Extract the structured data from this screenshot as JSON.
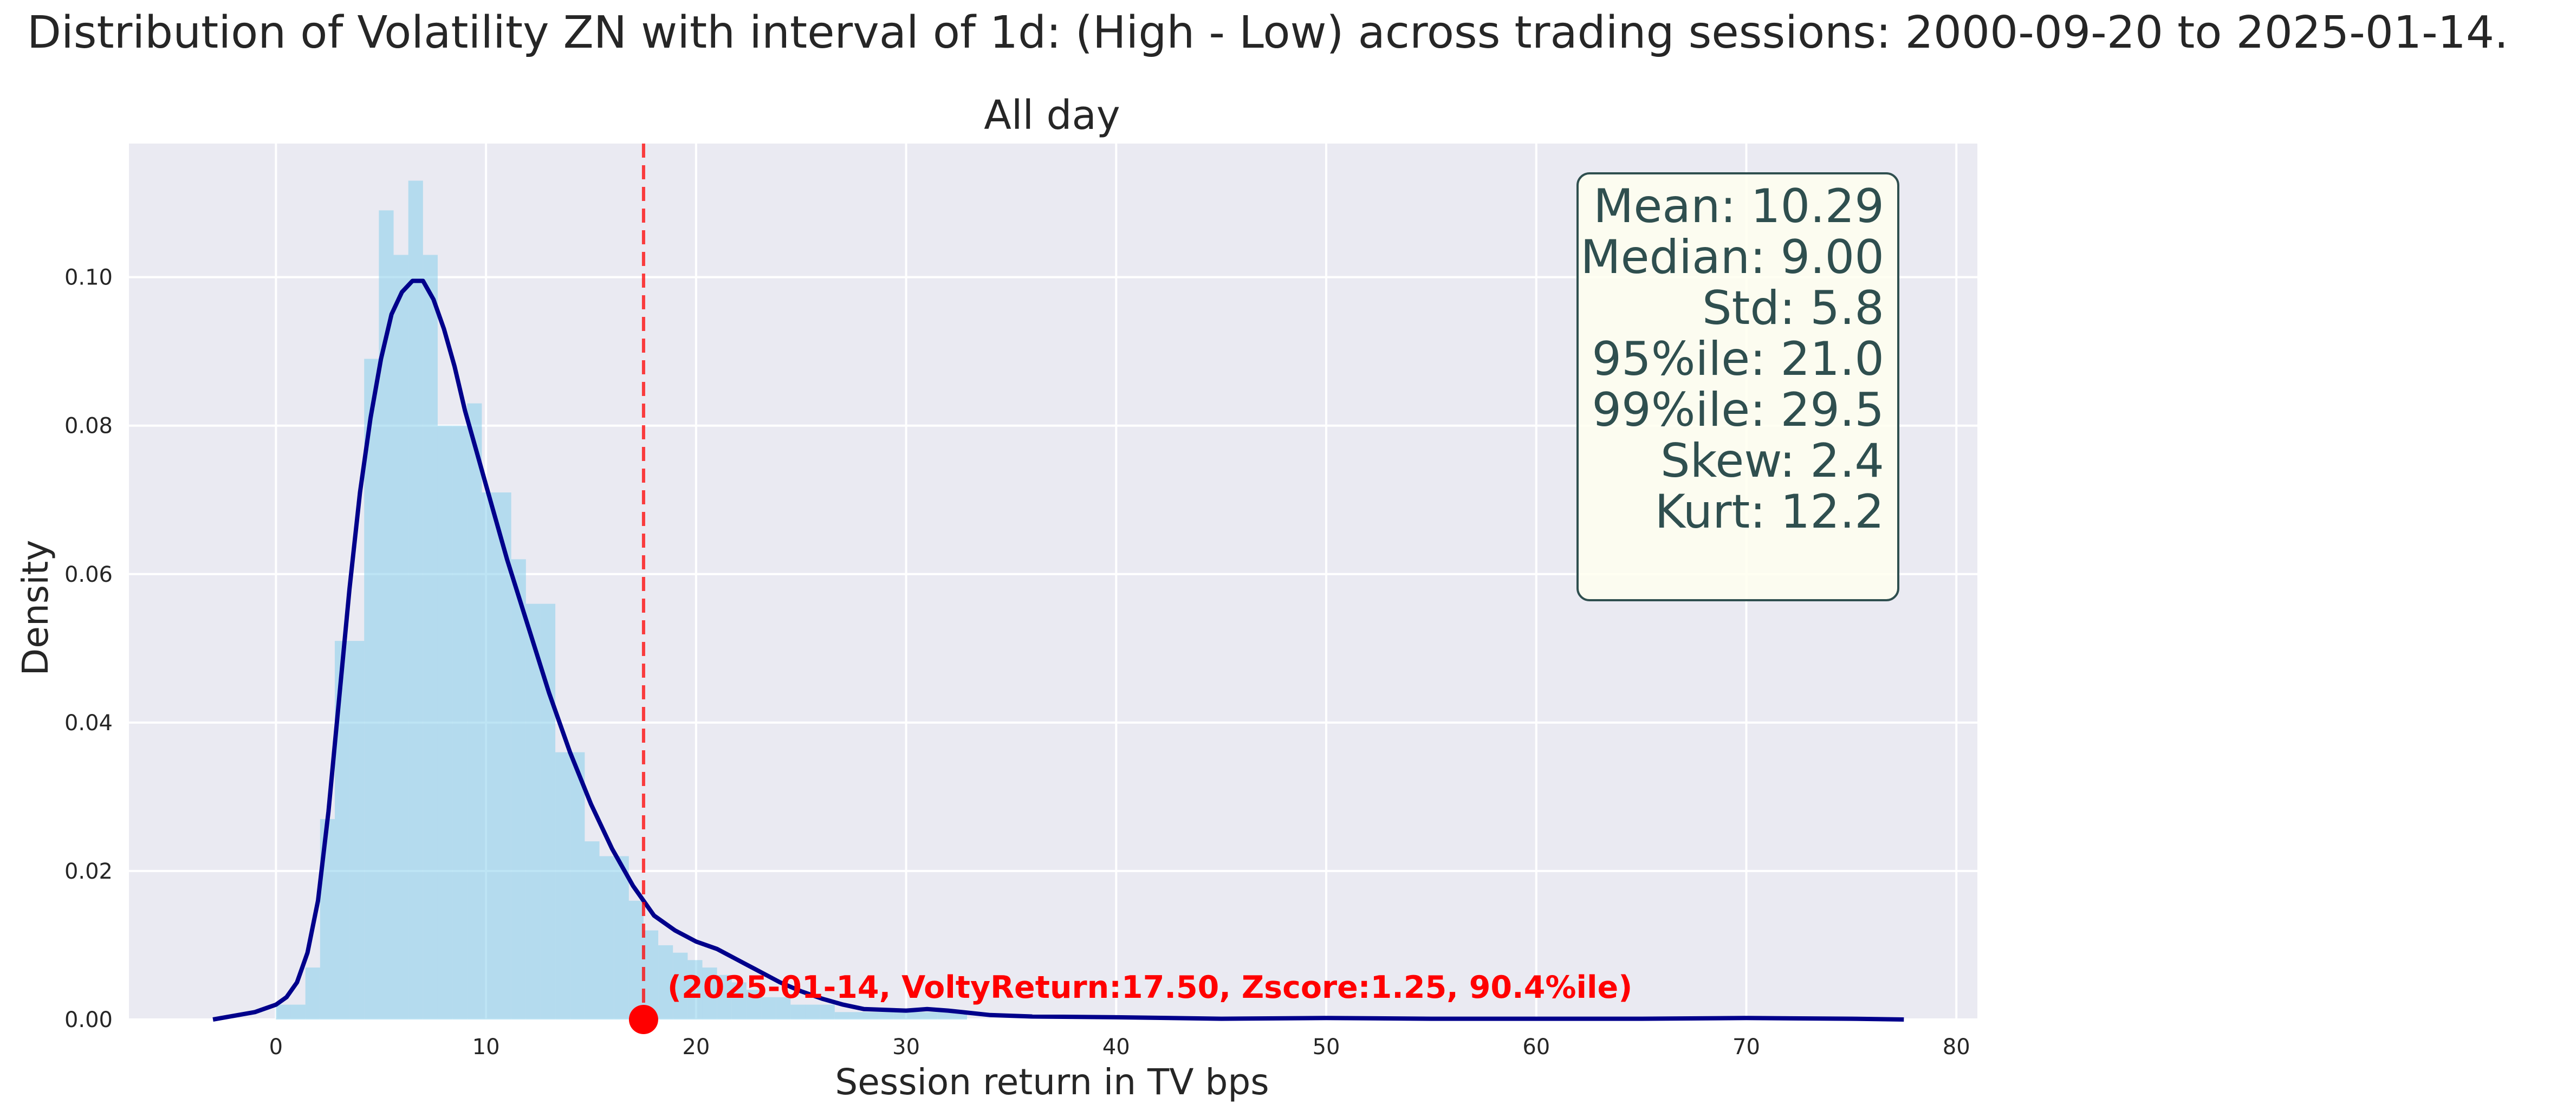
{
  "chart_data": {
    "type": "histogram",
    "suptitle": "Distribution of Volatility ZN with interval of 1d: (High - Low) across trading sessions: 2000-09-20 to 2025-01-14.",
    "title": "All day",
    "xlabel": "Session return in TV bps",
    "ylabel": "Density",
    "xlim": [
      -7,
      81
    ],
    "ylim": [
      0,
      0.118
    ],
    "xticks": [
      0,
      10,
      20,
      30,
      40,
      50,
      60,
      70,
      80
    ],
    "yticks": [
      0.0,
      0.02,
      0.04,
      0.06,
      0.08,
      0.1
    ],
    "ytick_labels": [
      "0.00",
      "0.02",
      "0.04",
      "0.06",
      "0.08",
      "0.10"
    ],
    "grid": true,
    "colors": {
      "background": "#eaeaf2",
      "grid": "#ffffff",
      "histogram": "#87ceeb",
      "kde": "#00008b",
      "marker": "#ff0000",
      "stats_box_fill": "#fffff0",
      "stats_box_edge": "#2f4f4f",
      "stats_text": "#2f4f4f"
    },
    "histogram": {
      "bin_width": 0.7,
      "bins": [
        {
          "x": 0.0,
          "density": 0.002
        },
        {
          "x": 0.7,
          "density": 0.002
        },
        {
          "x": 1.4,
          "density": 0.007
        },
        {
          "x": 2.1,
          "density": 0.027
        },
        {
          "x": 2.8,
          "density": 0.051
        },
        {
          "x": 3.5,
          "density": 0.051
        },
        {
          "x": 4.2,
          "density": 0.089
        },
        {
          "x": 4.9,
          "density": 0.109
        },
        {
          "x": 5.6,
          "density": 0.103
        },
        {
          "x": 6.3,
          "density": 0.113
        },
        {
          "x": 7.0,
          "density": 0.103
        },
        {
          "x": 7.7,
          "density": 0.08
        },
        {
          "x": 8.4,
          "density": 0.08
        },
        {
          "x": 9.1,
          "density": 0.083
        },
        {
          "x": 9.8,
          "density": 0.071
        },
        {
          "x": 10.5,
          "density": 0.071
        },
        {
          "x": 11.2,
          "density": 0.062
        },
        {
          "x": 11.9,
          "density": 0.056
        },
        {
          "x": 12.6,
          "density": 0.056
        },
        {
          "x": 13.3,
          "density": 0.036
        },
        {
          "x": 14.0,
          "density": 0.036
        },
        {
          "x": 14.7,
          "density": 0.024
        },
        {
          "x": 15.4,
          "density": 0.022
        },
        {
          "x": 16.1,
          "density": 0.022
        },
        {
          "x": 16.8,
          "density": 0.016
        },
        {
          "x": 17.5,
          "density": 0.012
        },
        {
          "x": 18.2,
          "density": 0.01
        },
        {
          "x": 18.9,
          "density": 0.009
        },
        {
          "x": 19.6,
          "density": 0.008
        },
        {
          "x": 20.3,
          "density": 0.007
        },
        {
          "x": 21.0,
          "density": 0.006
        },
        {
          "x": 21.7,
          "density": 0.005
        },
        {
          "x": 22.4,
          "density": 0.004
        },
        {
          "x": 23.1,
          "density": 0.003
        },
        {
          "x": 23.8,
          "density": 0.003
        },
        {
          "x": 24.5,
          "density": 0.002
        },
        {
          "x": 25.2,
          "density": 0.002
        },
        {
          "x": 25.9,
          "density": 0.002
        },
        {
          "x": 26.6,
          "density": 0.001
        },
        {
          "x": 27.3,
          "density": 0.001
        },
        {
          "x": 28.0,
          "density": 0.001
        },
        {
          "x": 28.7,
          "density": 0.001
        },
        {
          "x": 29.4,
          "density": 0.001
        },
        {
          "x": 30.1,
          "density": 0.001
        },
        {
          "x": 30.8,
          "density": 0.001
        },
        {
          "x": 31.5,
          "density": 0.001
        },
        {
          "x": 32.2,
          "density": 0.001
        }
      ]
    },
    "kde": {
      "x": [
        -3,
        -1,
        0,
        0.5,
        1,
        1.5,
        2,
        2.5,
        3,
        3.5,
        4,
        4.5,
        5,
        5.5,
        6,
        6.5,
        7,
        7.5,
        8,
        8.5,
        9,
        9.5,
        10,
        11,
        12,
        13,
        14,
        15,
        16,
        17,
        18,
        19,
        20,
        21,
        22,
        23,
        24,
        25,
        26,
        27,
        28,
        30,
        31,
        32,
        34,
        36,
        40,
        45,
        50,
        55,
        60,
        65,
        70,
        75,
        77.5
      ],
      "y": [
        0.0,
        0.001,
        0.002,
        0.003,
        0.005,
        0.009,
        0.016,
        0.028,
        0.043,
        0.058,
        0.071,
        0.081,
        0.089,
        0.095,
        0.098,
        0.0995,
        0.0995,
        0.097,
        0.093,
        0.088,
        0.082,
        0.077,
        0.072,
        0.062,
        0.053,
        0.044,
        0.036,
        0.029,
        0.023,
        0.018,
        0.014,
        0.012,
        0.0105,
        0.0095,
        0.008,
        0.0065,
        0.005,
        0.0038,
        0.0028,
        0.002,
        0.0014,
        0.0012,
        0.0014,
        0.0012,
        0.0006,
        0.0004,
        0.0003,
        0.0001,
        0.0002,
        0.0001,
        0.0001,
        0.0001,
        0.0002,
        0.0001,
        0.0
      ]
    },
    "vline": {
      "x": 17.5
    },
    "marker": {
      "x": 17.5,
      "y": 0.0
    },
    "event_annotation": "(2025-01-14, VoltyReturn:17.50, Zscore:1.25, 90.4%ile)",
    "stats_lines": [
      "Mean: 10.29",
      "Median: 9.00",
      "Std: 5.8",
      "95%ile: 21.0",
      "99%ile: 29.5",
      "Skew: 2.4",
      "Kurt: 12.2"
    ]
  }
}
